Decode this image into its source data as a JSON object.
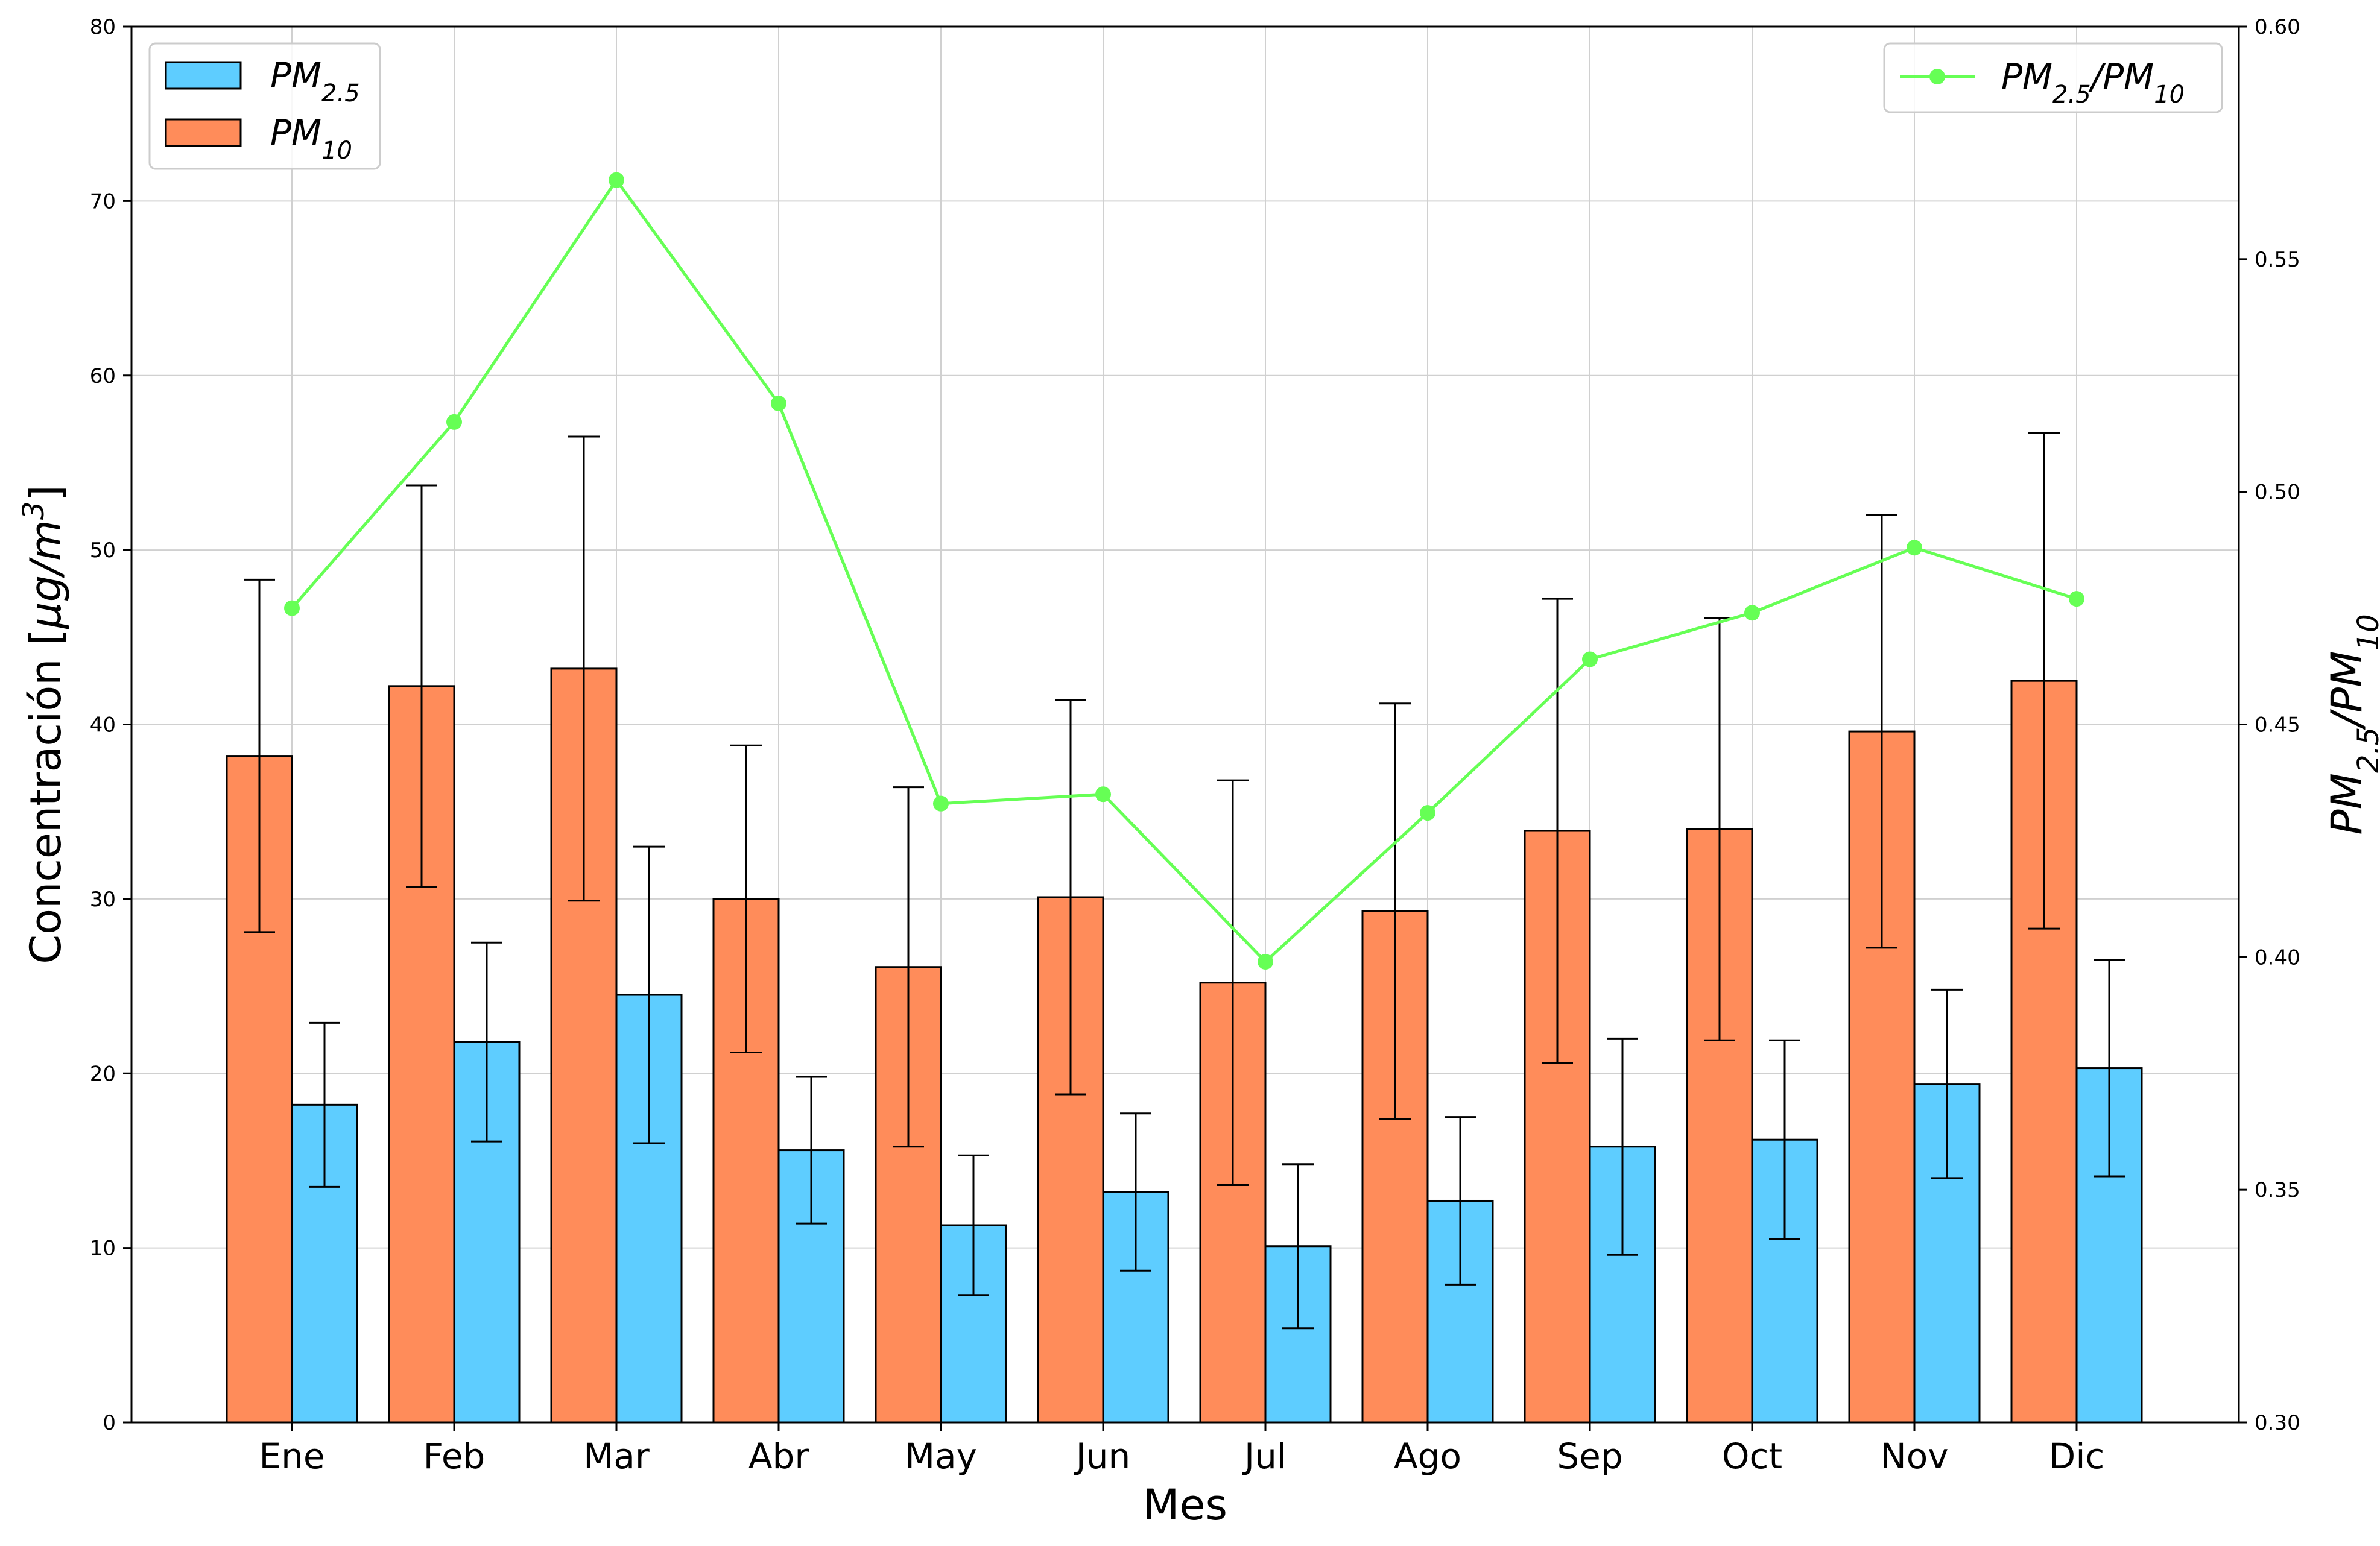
{
  "chart_data": {
    "type": "bar",
    "categories": [
      "Ene",
      "Feb",
      "Mar",
      "Abr",
      "May",
      "Jun",
      "Jul",
      "Ago",
      "Sep",
      "Oct",
      "Nov",
      "Dic"
    ],
    "xlabel": "Mes",
    "ylabel": "Concentración [μg/m³]",
    "ylabel_parts": {
      "base": "Concentración [",
      "unit_main": "μg/m",
      "unit_sup": "3",
      "close": "]"
    },
    "ylim": [
      0,
      80
    ],
    "yticks": [
      "0",
      "10",
      "20",
      "30",
      "40",
      "50",
      "60",
      "70",
      "80"
    ],
    "y2label": "PM2.5/PM10",
    "y2lim": [
      0.3,
      0.6
    ],
    "y2ticks": [
      "0.30",
      "0.35",
      "0.40",
      "0.45",
      "0.50",
      "0.55",
      "0.60"
    ],
    "grid": true,
    "series": [
      {
        "name": "PM10",
        "kind": "bar",
        "axis": "left",
        "color": "#ff8c5a",
        "values": [
          38.2,
          42.2,
          43.2,
          30.0,
          26.1,
          30.1,
          25.2,
          29.3,
          33.9,
          34.0,
          39.6,
          42.5
        ],
        "error": [
          10.1,
          11.5,
          13.3,
          8.8,
          10.3,
          11.3,
          11.6,
          11.9,
          13.3,
          12.1,
          12.4,
          14.2
        ]
      },
      {
        "name": "PM2.5",
        "kind": "bar",
        "axis": "left",
        "color": "#5ecdff",
        "values": [
          18.2,
          21.8,
          24.5,
          15.6,
          11.3,
          13.2,
          10.1,
          12.7,
          15.8,
          16.2,
          19.4,
          20.3
        ],
        "error": [
          4.7,
          5.7,
          8.5,
          4.2,
          4.0,
          4.5,
          4.7,
          4.8,
          6.2,
          5.7,
          5.4,
          6.2
        ]
      },
      {
        "name": "PM2.5/PM10",
        "kind": "line",
        "axis": "right",
        "color": "#66ff55",
        "values": [
          0.475,
          0.515,
          0.567,
          0.519,
          0.433,
          0.435,
          0.399,
          0.431,
          0.464,
          0.474,
          0.488,
          0.477
        ]
      }
    ],
    "legend_left": {
      "placement": "top-left",
      "items": [
        {
          "main": "PM",
          "sub": "2.5",
          "color": "#5ecdff"
        },
        {
          "main": "PM",
          "sub": "10",
          "color": "#ff8c5a"
        }
      ]
    },
    "legend_right": {
      "placement": "top-right",
      "items": [
        {
          "main1": "PM",
          "sub1": "2.5",
          "sep": "/",
          "main2": "PM",
          "sub2": "10",
          "color": "#66ff55"
        }
      ]
    }
  }
}
